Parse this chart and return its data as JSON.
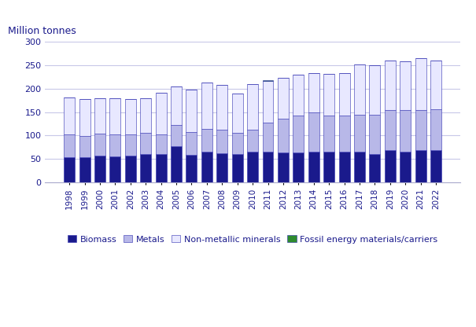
{
  "years": [
    1998,
    1999,
    2000,
    2001,
    2002,
    2003,
    2004,
    2005,
    2006,
    2007,
    2008,
    2009,
    2010,
    2011,
    2012,
    2013,
    2014,
    2015,
    2016,
    2017,
    2018,
    2019,
    2020,
    2021,
    2022
  ],
  "biomass": [
    54,
    54,
    57,
    56,
    57,
    61,
    61,
    77,
    58,
    65,
    62,
    61,
    65,
    65,
    64,
    64,
    65,
    65,
    65,
    65,
    60,
    68,
    66,
    68,
    69
  ],
  "metals": [
    49,
    45,
    47,
    46,
    46,
    45,
    42,
    46,
    50,
    49,
    50,
    44,
    48,
    62,
    72,
    79,
    84,
    77,
    77,
    80,
    84,
    87,
    88,
    87,
    87
  ],
  "nonmetallic": [
    79,
    79,
    76,
    77,
    75,
    73,
    89,
    82,
    90,
    99,
    96,
    84,
    97,
    89,
    88,
    87,
    84,
    90,
    92,
    107,
    106,
    106,
    104,
    110,
    104
  ],
  "fossil": [
    0,
    0,
    0,
    0,
    0,
    0,
    0,
    0,
    0,
    0,
    0,
    0,
    0,
    2,
    0,
    0,
    0,
    0,
    0,
    0,
    0,
    0,
    0,
    0,
    0
  ],
  "colors": {
    "biomass": "#1a1a8c",
    "metals": "#b8b8e8",
    "nonmetallic": "#e8e8ff",
    "fossil": "#2e8b2e"
  },
  "bar_edgecolor": "#3030b0",
  "bar_linewidth": 0.4,
  "ylabel": "Million tonnes",
  "ylim": [
    0,
    300
  ],
  "yticks": [
    0,
    50,
    100,
    150,
    200,
    250,
    300
  ],
  "text_color": "#1a1a8c",
  "background_color": "#ffffff",
  "grid_color": "#c8c8e8"
}
